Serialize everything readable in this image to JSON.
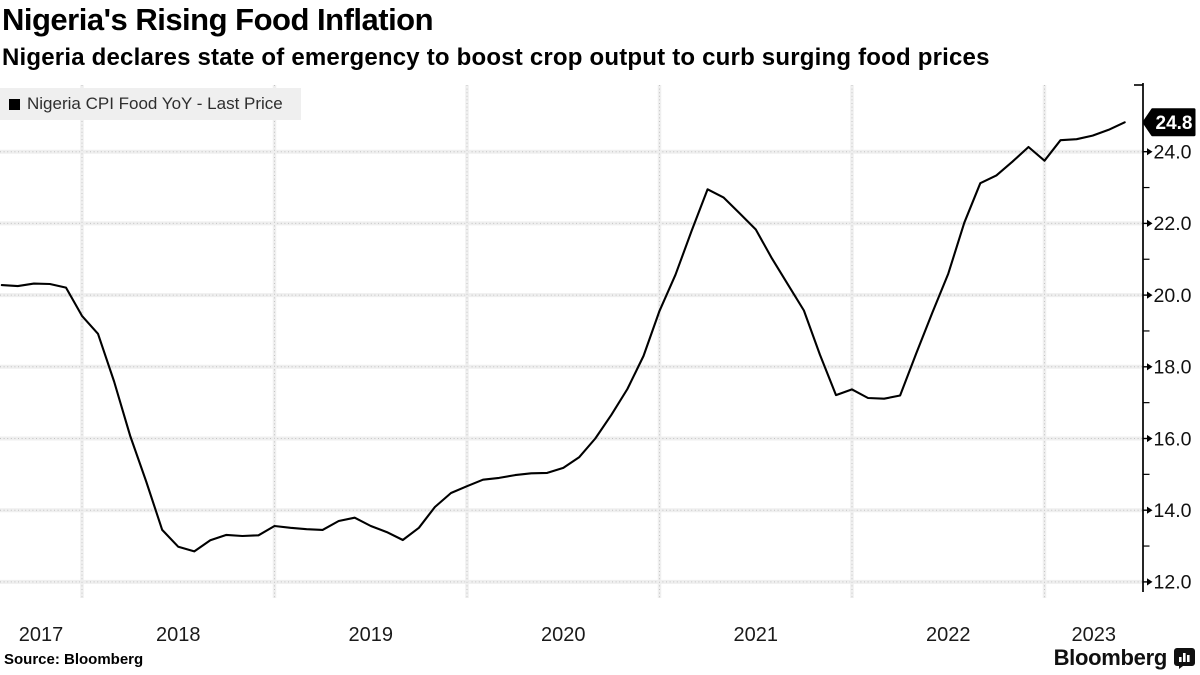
{
  "header": {
    "title": "Nigeria's Rising Food Inflation",
    "subtitle": "Nigeria declares state of emergency to boost crop output to curb surging food prices"
  },
  "legend": {
    "marker": "■",
    "label": "Nigeria CPI Food YoY - Last Price"
  },
  "chart_data": {
    "type": "line",
    "title": "Nigeria's Rising Food Inflation",
    "series_name": "Nigeria CPI Food YoY - Last Price",
    "unit": "percent YoY",
    "frequency": "monthly",
    "start": "2017-07",
    "end": "2023-05",
    "values": [
      20.28,
      20.25,
      20.32,
      20.31,
      20.21,
      19.42,
      18.92,
      17.59,
      16.08,
      14.8,
      13.45,
      12.98,
      12.85,
      13.16,
      13.31,
      13.28,
      13.3,
      13.56,
      13.51,
      13.47,
      13.45,
      13.7,
      13.79,
      13.56,
      13.39,
      13.17,
      13.51,
      14.09,
      14.48,
      14.67,
      14.85,
      14.9,
      14.98,
      15.03,
      15.04,
      15.18,
      15.48,
      16.0,
      16.66,
      17.38,
      18.3,
      19.56,
      20.57,
      21.79,
      22.95,
      22.72,
      22.28,
      21.83,
      21.03,
      20.3,
      19.57,
      18.34,
      17.21,
      17.37,
      17.13,
      17.11,
      17.2,
      18.37,
      19.5,
      20.6,
      22.02,
      23.12,
      23.34,
      23.72,
      24.13,
      23.75,
      24.32,
      24.35,
      24.45,
      24.61,
      24.82
    ],
    "last_price": 24.8,
    "last_price_label": "24.8",
    "y_axis": {
      "side": "right",
      "min": 12,
      "max": 25,
      "major_tick_step": 2,
      "minor_tick_step": 2,
      "tick_labels": [
        "12.0",
        "14.0",
        "16.0",
        "18.0",
        "20.0",
        "22.0",
        "24.0"
      ],
      "minor_tick_values": [
        13,
        15,
        17,
        19,
        21,
        23
      ]
    },
    "x_axis": {
      "year_labels": [
        "2017",
        "2018",
        "2019",
        "2020",
        "2021",
        "2022",
        "2023"
      ]
    },
    "grid": true,
    "legend_position": "top-left",
    "line_color": "#000000",
    "grid_color": "#c4c4c4",
    "grid_halo_color": "#efefef",
    "axis_color": "#000000",
    "badge_bg": "#000000",
    "badge_text_color": "#ffffff",
    "legend_bg": "#efefef"
  },
  "footer": {
    "source": "Source: Bloomberg",
    "brand": "Bloomberg"
  }
}
